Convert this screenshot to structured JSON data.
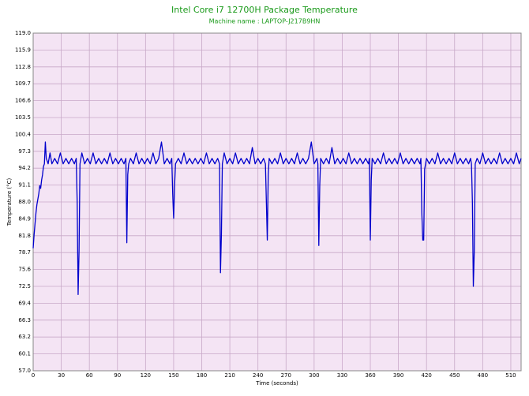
{
  "chart_data": {
    "type": "line",
    "title": "Intel Core i7 12700H Package Temperature",
    "subtitle": "Machine name : LAPTOP-J217B9HN",
    "x_label": "Time (seconds)",
    "y_label": "Temperature (°C)",
    "xlim": [
      0,
      521
    ],
    "ylim": [
      57,
      119
    ],
    "xticks": [
      0,
      30,
      60,
      90,
      120,
      150,
      180,
      210,
      240,
      270,
      300,
      330,
      360,
      390,
      420,
      450,
      480,
      510
    ],
    "yticks": [
      {
        "value": 57,
        "label": "57.0"
      },
      60.1,
      63.2,
      66.3,
      69.4,
      72.5,
      75.6,
      78.7,
      81.8,
      84.9,
      {
        "value": 88,
        "label": "88.0"
      },
      91.1,
      94.2,
      97.3,
      100.4,
      103.5,
      106.6,
      109.7,
      112.8,
      115.9,
      {
        "value": 119,
        "label": "119.0"
      }
    ],
    "grid": true,
    "background": "#f4e4f4",
    "grid_color": "#c8a8c8",
    "text_color": "#1a9a1a",
    "x": [
      0,
      1,
      2,
      3,
      4,
      5,
      6,
      7,
      8,
      9,
      10,
      11,
      12,
      13,
      14,
      16,
      18,
      20,
      23,
      26,
      29,
      32,
      35,
      38,
      41,
      44,
      46,
      47,
      48,
      49,
      50,
      52,
      55,
      58,
      61,
      64,
      67,
      70,
      73,
      76,
      79,
      82,
      85,
      88,
      91,
      94,
      97,
      99,
      100,
      101,
      102,
      104,
      107,
      110,
      113,
      116,
      119,
      122,
      125,
      128,
      131,
      134,
      137,
      140,
      143,
      146,
      148,
      149,
      150,
      151,
      152,
      155,
      158,
      161,
      164,
      167,
      170,
      173,
      176,
      179,
      182,
      185,
      188,
      191,
      194,
      197,
      199,
      200,
      201,
      202,
      204,
      207,
      210,
      213,
      216,
      219,
      222,
      225,
      228,
      231,
      234,
      237,
      240,
      243,
      246,
      248,
      249,
      250,
      251,
      252,
      255,
      258,
      261,
      264,
      267,
      270,
      273,
      276,
      279,
      282,
      285,
      288,
      291,
      294,
      297,
      300,
      303,
      304,
      305,
      306,
      307,
      310,
      313,
      316,
      319,
      322,
      325,
      328,
      331,
      334,
      337,
      340,
      343,
      346,
      349,
      352,
      355,
      358,
      359,
      360,
      361,
      362,
      365,
      368,
      371,
      374,
      377,
      380,
      383,
      386,
      389,
      392,
      395,
      398,
      401,
      404,
      407,
      410,
      413,
      414,
      415,
      416,
      417,
      418,
      420,
      423,
      426,
      429,
      432,
      435,
      438,
      441,
      444,
      447,
      450,
      453,
      456,
      459,
      462,
      465,
      467,
      468,
      469,
      470,
      471,
      472,
      474,
      477,
      480,
      483,
      486,
      489,
      492,
      495,
      498,
      501,
      504,
      507,
      510,
      513,
      516,
      519,
      521
    ],
    "series": [
      {
        "color": "#0000cc",
        "values": [
          79.5,
          82,
          84,
          86,
          87.5,
          88.5,
          89.5,
          91,
          90.5,
          92,
          93,
          94.5,
          95,
          99,
          96,
          95,
          97,
          95,
          96,
          95,
          97,
          95,
          96,
          95,
          96,
          95,
          96,
          88,
          71,
          79,
          95,
          97,
          95,
          96,
          95,
          97,
          95,
          96,
          95,
          96,
          95,
          97,
          95,
          96,
          95,
          96,
          95,
          96,
          80.5,
          93,
          95,
          96,
          95,
          97,
          95,
          96,
          95,
          96,
          95,
          97,
          95,
          96,
          99,
          95,
          96,
          95,
          96,
          89.5,
          85,
          91,
          95,
          96,
          95,
          97,
          95,
          96,
          95,
          96,
          95,
          96,
          95,
          97,
          95,
          96,
          95,
          96,
          95,
          75,
          82,
          95,
          97,
          95,
          96,
          95,
          97,
          95,
          96,
          95,
          96,
          95,
          98,
          95,
          96,
          95,
          96,
          95,
          88,
          81,
          93,
          96,
          95,
          96,
          95,
          97,
          95,
          96,
          95,
          96,
          95,
          97,
          95,
          96,
          95,
          96,
          99,
          95,
          96,
          95,
          80,
          91,
          96,
          95,
          96,
          95,
          98,
          95,
          96,
          95,
          96,
          95,
          97,
          95,
          96,
          95,
          96,
          95,
          96,
          95,
          96,
          81,
          92,
          96,
          95,
          96,
          95,
          97,
          95,
          96,
          95,
          96,
          95,
          97,
          95,
          96,
          95,
          96,
          95,
          96,
          95,
          96,
          86,
          81,
          81,
          94,
          96,
          95,
          96,
          95,
          97,
          95,
          96,
          95,
          96,
          95,
          97,
          95,
          96,
          95,
          96,
          95,
          96,
          95,
          88,
          72.5,
          79,
          95,
          96,
          95,
          97,
          95,
          96,
          95,
          96,
          95,
          97,
          95,
          96,
          95,
          96,
          95,
          97,
          95,
          96
        ]
      }
    ]
  }
}
